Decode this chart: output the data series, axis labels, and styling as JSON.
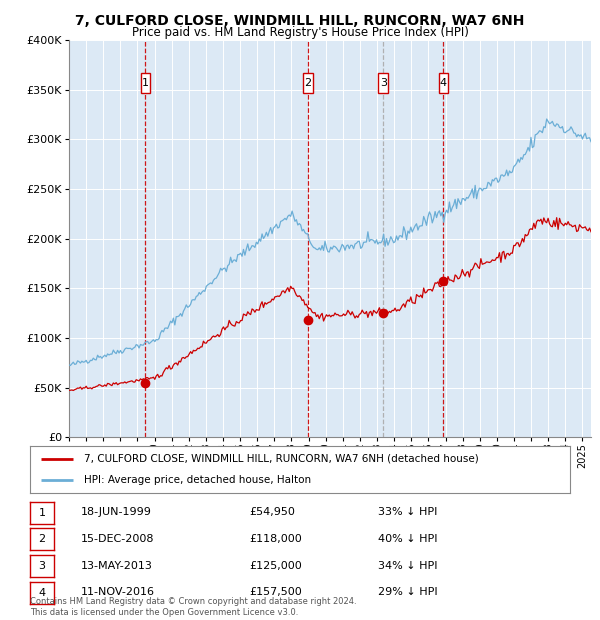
{
  "title": "7, CULFORD CLOSE, WINDMILL HILL, RUNCORN, WA7 6NH",
  "subtitle": "Price paid vs. HM Land Registry's House Price Index (HPI)",
  "bg_color": "#dce9f5",
  "fig_bg_color": "#ffffff",
  "hpi_color": "#6baed6",
  "price_color": "#cc0000",
  "vline_color_red": "#cc0000",
  "vline_color_gray": "#aaaaaa",
  "ylim": [
    0,
    400000
  ],
  "yticks": [
    0,
    50000,
    100000,
    150000,
    200000,
    250000,
    300000,
    350000,
    400000
  ],
  "ytick_labels": [
    "£0",
    "£50K",
    "£100K",
    "£150K",
    "£200K",
    "£250K",
    "£300K",
    "£350K",
    "£400K"
  ],
  "sales": [
    {
      "num": 1,
      "date_num": 1999.46,
      "price": 54950,
      "label": "1",
      "vline_style": "red"
    },
    {
      "num": 2,
      "date_num": 2008.96,
      "price": 118000,
      "label": "2",
      "vline_style": "red"
    },
    {
      "num": 3,
      "date_num": 2013.36,
      "price": 125000,
      "label": "3",
      "vline_style": "gray"
    },
    {
      "num": 4,
      "date_num": 2016.87,
      "price": 157500,
      "label": "4",
      "vline_style": "red"
    }
  ],
  "legend_property_label": "7, CULFORD CLOSE, WINDMILL HILL, RUNCORN, WA7 6NH (detached house)",
  "legend_hpi_label": "HPI: Average price, detached house, Halton",
  "table_rows": [
    {
      "num": 1,
      "date": "18-JUN-1999",
      "price": "£54,950",
      "pct": "33% ↓ HPI"
    },
    {
      "num": 2,
      "date": "15-DEC-2008",
      "price": "£118,000",
      "pct": "40% ↓ HPI"
    },
    {
      "num": 3,
      "date": "13-MAY-2013",
      "price": "£125,000",
      "pct": "34% ↓ HPI"
    },
    {
      "num": 4,
      "date": "11-NOV-2016",
      "price": "£157,500",
      "pct": "29% ↓ HPI"
    }
  ],
  "footer": "Contains HM Land Registry data © Crown copyright and database right 2024.\nThis data is licensed under the Open Government Licence v3.0.",
  "xmin": 1995.0,
  "xmax": 2025.5
}
